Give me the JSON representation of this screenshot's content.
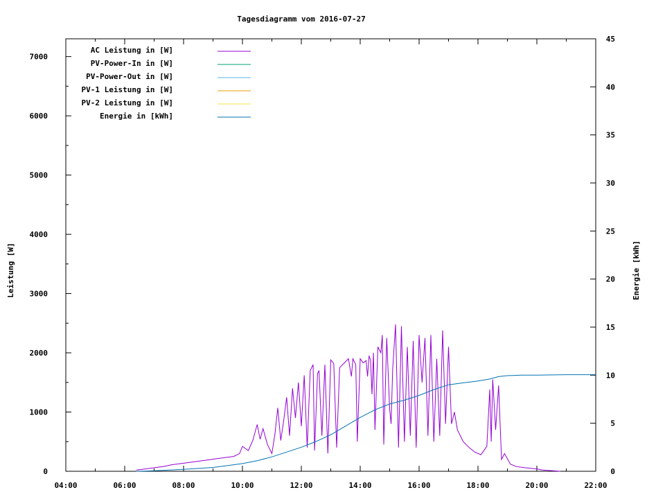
{
  "chart_data": {
    "type": "line",
    "title": "Tagesdiagramm vom 2016-07-27",
    "xlabel": "",
    "ylabel": "Leistung [W]",
    "y2label": "Energie [kWh]",
    "xlim": [
      4,
      22
    ],
    "ylim": [
      0,
      7300
    ],
    "y2lim": [
      0,
      45
    ],
    "x_ticks": [
      "04:00",
      "06:00",
      "08:00",
      "10:00",
      "12:00",
      "14:00",
      "16:00",
      "18:00",
      "20:00",
      "22:00"
    ],
    "y_ticks": [
      0,
      1000,
      2000,
      3000,
      4000,
      5000,
      6000,
      7000
    ],
    "y2_ticks": [
      0,
      5,
      10,
      15,
      20,
      25,
      30,
      35,
      40,
      45
    ],
    "grid": false,
    "legend_position": "top-left",
    "series": [
      {
        "name": "AC Leistung in [W]",
        "axis": "left",
        "color": "#9400d3",
        "points": [
          [
            6.4,
            20
          ],
          [
            6.7,
            40
          ],
          [
            7.0,
            60
          ],
          [
            7.3,
            80
          ],
          [
            7.6,
            110
          ],
          [
            7.9,
            130
          ],
          [
            8.2,
            150
          ],
          [
            8.5,
            170
          ],
          [
            8.8,
            190
          ],
          [
            9.1,
            210
          ],
          [
            9.4,
            230
          ],
          [
            9.7,
            250
          ],
          [
            9.9,
            300
          ],
          [
            10.0,
            420
          ],
          [
            10.2,
            350
          ],
          [
            10.35,
            520
          ],
          [
            10.5,
            790
          ],
          [
            10.6,
            540
          ],
          [
            10.7,
            720
          ],
          [
            10.85,
            450
          ],
          [
            11.0,
            300
          ],
          [
            11.1,
            620
          ],
          [
            11.2,
            1070
          ],
          [
            11.3,
            520
          ],
          [
            11.4,
            850
          ],
          [
            11.5,
            1250
          ],
          [
            11.6,
            600
          ],
          [
            11.7,
            1400
          ],
          [
            11.8,
            900
          ],
          [
            11.9,
            1500
          ],
          [
            12.0,
            760
          ],
          [
            12.1,
            1620
          ],
          [
            12.2,
            400
          ],
          [
            12.3,
            1700
          ],
          [
            12.4,
            1800
          ],
          [
            12.45,
            350
          ],
          [
            12.55,
            1650
          ],
          [
            12.6,
            1700
          ],
          [
            12.7,
            600
          ],
          [
            12.8,
            1800
          ],
          [
            12.9,
            300
          ],
          [
            13.0,
            1880
          ],
          [
            13.1,
            1820
          ],
          [
            13.2,
            400
          ],
          [
            13.3,
            1750
          ],
          [
            13.4,
            1800
          ],
          [
            13.5,
            1850
          ],
          [
            13.6,
            1900
          ],
          [
            13.7,
            1600
          ],
          [
            13.75,
            1900
          ],
          [
            13.85,
            1800
          ],
          [
            13.9,
            500
          ],
          [
            14.0,
            1900
          ],
          [
            14.1,
            1830
          ],
          [
            14.2,
            1870
          ],
          [
            14.25,
            1600
          ],
          [
            14.3,
            1950
          ],
          [
            14.35,
            1880
          ],
          [
            14.4,
            1300
          ],
          [
            14.45,
            2000
          ],
          [
            14.5,
            700
          ],
          [
            14.6,
            2100
          ],
          [
            14.7,
            2000
          ],
          [
            14.75,
            2300
          ],
          [
            14.8,
            450
          ],
          [
            14.9,
            2250
          ],
          [
            15.0,
            1050
          ],
          [
            15.05,
            800
          ],
          [
            15.1,
            1700
          ],
          [
            15.2,
            2480
          ],
          [
            15.3,
            400
          ],
          [
            15.4,
            2450
          ],
          [
            15.5,
            500
          ],
          [
            15.6,
            2100
          ],
          [
            15.7,
            600
          ],
          [
            15.8,
            2200
          ],
          [
            15.9,
            400
          ],
          [
            16.0,
            2300
          ],
          [
            16.1,
            1500
          ],
          [
            16.2,
            2250
          ],
          [
            16.3,
            600
          ],
          [
            16.4,
            2300
          ],
          [
            16.5,
            500
          ],
          [
            16.6,
            1900
          ],
          [
            16.7,
            600
          ],
          [
            16.8,
            2380
          ],
          [
            16.9,
            800
          ],
          [
            17.0,
            2100
          ],
          [
            17.1,
            800
          ],
          [
            17.2,
            1000
          ],
          [
            17.3,
            700
          ],
          [
            17.5,
            500
          ],
          [
            17.7,
            400
          ],
          [
            17.9,
            320
          ],
          [
            18.1,
            280
          ],
          [
            18.3,
            420
          ],
          [
            18.4,
            1380
          ],
          [
            18.45,
            500
          ],
          [
            18.5,
            1550
          ],
          [
            18.6,
            700
          ],
          [
            18.7,
            1450
          ],
          [
            18.8,
            200
          ],
          [
            18.9,
            300
          ],
          [
            19.1,
            120
          ],
          [
            19.3,
            80
          ],
          [
            19.6,
            60
          ],
          [
            19.8,
            50
          ],
          [
            20.0,
            40
          ],
          [
            20.2,
            20
          ],
          [
            20.5,
            10
          ],
          [
            20.8,
            0
          ]
        ]
      },
      {
        "name": "PV-Power-In in [W]",
        "axis": "left",
        "color": "#009e73",
        "points": []
      },
      {
        "name": "PV-Power-Out in [W]",
        "axis": "left",
        "color": "#56b4e9",
        "points": []
      },
      {
        "name": "PV-1 Leistung in [W]",
        "axis": "left",
        "color": "#e69f00",
        "points": []
      },
      {
        "name": "PV-2 Leistung in [W]",
        "axis": "left",
        "color": "#f0e442",
        "points": []
      },
      {
        "name": "Energie in [kWh]",
        "axis": "right",
        "color": "#0072b2",
        "points": [
          [
            6.4,
            0
          ],
          [
            7,
            0.05
          ],
          [
            8,
            0.2
          ],
          [
            9,
            0.4
          ],
          [
            9.5,
            0.6
          ],
          [
            10,
            0.8
          ],
          [
            10.5,
            1.1
          ],
          [
            11,
            1.5
          ],
          [
            11.5,
            2.0
          ],
          [
            12,
            2.5
          ],
          [
            12.5,
            3.1
          ],
          [
            13,
            3.8
          ],
          [
            13.5,
            4.7
          ],
          [
            14,
            5.6
          ],
          [
            14.5,
            6.4
          ],
          [
            15,
            7.0
          ],
          [
            15.5,
            7.4
          ],
          [
            16,
            7.9
          ],
          [
            16.5,
            8.5
          ],
          [
            17,
            9.0
          ],
          [
            17.5,
            9.2
          ],
          [
            18,
            9.4
          ],
          [
            18.4,
            9.6
          ],
          [
            18.7,
            9.85
          ],
          [
            19,
            9.95
          ],
          [
            19.5,
            10.0
          ],
          [
            20,
            10.0
          ],
          [
            21,
            10.05
          ],
          [
            22,
            10.05
          ]
        ]
      }
    ]
  }
}
